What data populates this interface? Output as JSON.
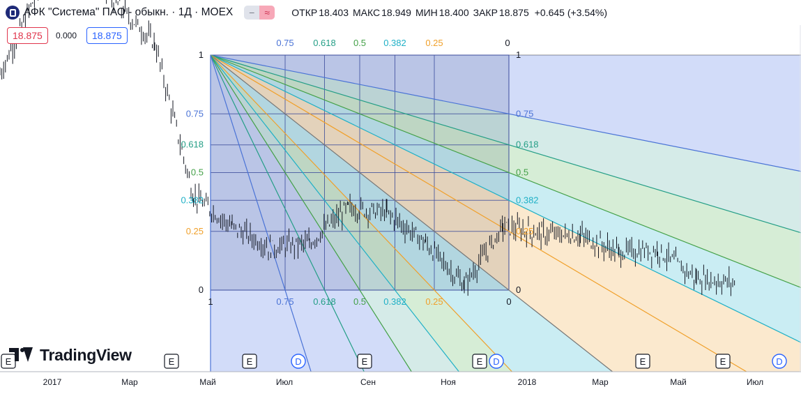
{
  "header": {
    "title": "АФК \"Система\" ПАО - обыкн. · 1Д · MOEX",
    "pill_left": "−",
    "pill_right": "≈",
    "open_label": "ОТКР",
    "open_value": "18.403",
    "high_label": "МАКС",
    "high_value": "18.949",
    "low_label": "МИН",
    "low_value": "18.400",
    "close_label": "ЗАКР",
    "close_value": "18.875",
    "change": "+0.645 (+3.54%)"
  },
  "badges": {
    "red": "18.875",
    "zero": "0.000",
    "blue": "18.875"
  },
  "logo": {
    "text": "TradingView"
  },
  "colors": {
    "l075": "#4a73d6",
    "l0618": "#249e86",
    "l05": "#43a047",
    "l0382": "#1fb0c6",
    "l025": "#f0a02a",
    "fan_blue": "#5b7de0",
    "fan_teal": "#2e9c8e",
    "fan_green": "#5cb85c",
    "fan_cyan": "#2bb7cf",
    "fan_orange": "#f1a63b",
    "fan_gray": "#777777",
    "grid_line": "#3a4a9a",
    "candle": "#131722"
  },
  "chart_data": {
    "type": "line",
    "title": "",
    "x_labels": [
      "2017",
      "Мар",
      "Май",
      "Июл",
      "Сен",
      "Ноя",
      "2018",
      "Мар",
      "Май",
      "Июл"
    ],
    "price_series_approx": [
      {
        "t": "2016-12",
        "close": 0.92
      },
      {
        "t": "2017-01",
        "close": 1.28
      },
      {
        "t": "2017-02",
        "close": 1.42
      },
      {
        "t": "2017-03",
        "close": 1.22
      },
      {
        "t": "2017-04",
        "close": 1.05
      },
      {
        "t": "2017-05",
        "close": 0.4
      },
      {
        "t": "2017-06",
        "close": 0.27
      },
      {
        "t": "2017-07",
        "close": 0.18
      },
      {
        "t": "2017-08",
        "close": 0.2
      },
      {
        "t": "2017-09",
        "close": 0.35
      },
      {
        "t": "2017-10",
        "close": 0.33
      },
      {
        "t": "2017-11",
        "close": 0.2
      },
      {
        "t": "2017-12",
        "close": 0.02
      },
      {
        "t": "2018-01",
        "close": 0.27
      },
      {
        "t": "2018-02",
        "close": 0.24
      },
      {
        "t": "2018-03",
        "close": 0.23
      },
      {
        "t": "2018-04",
        "close": 0.16
      },
      {
        "t": "2018-05",
        "close": 0.17
      },
      {
        "t": "2018-06",
        "close": 0.05
      },
      {
        "t": "2018-07",
        "close": 0.03
      }
    ],
    "gann_fib_levels": [
      "1",
      "0.75",
      "0.618",
      "0.5",
      "0.382",
      "0.25",
      "0"
    ],
    "top_labels": [
      "0.75",
      "0.618",
      "0.5",
      "0.382",
      "0.25",
      "0"
    ],
    "right_labels": [
      "1",
      "0.75",
      "0.618",
      "0.5",
      "0.382",
      "0.25",
      "0"
    ],
    "left_labels": [
      "1",
      "0.75",
      "0.618",
      "0.5",
      "0.382",
      "0.25",
      "0"
    ],
    "bottom_labels": [
      "1",
      "0.75",
      "0.618",
      "0.5",
      "0.382",
      "0.25",
      "0"
    ],
    "event_markers": [
      "E",
      "E",
      "E",
      "D",
      "E",
      "E",
      "D",
      "E",
      "E",
      "D"
    ]
  }
}
